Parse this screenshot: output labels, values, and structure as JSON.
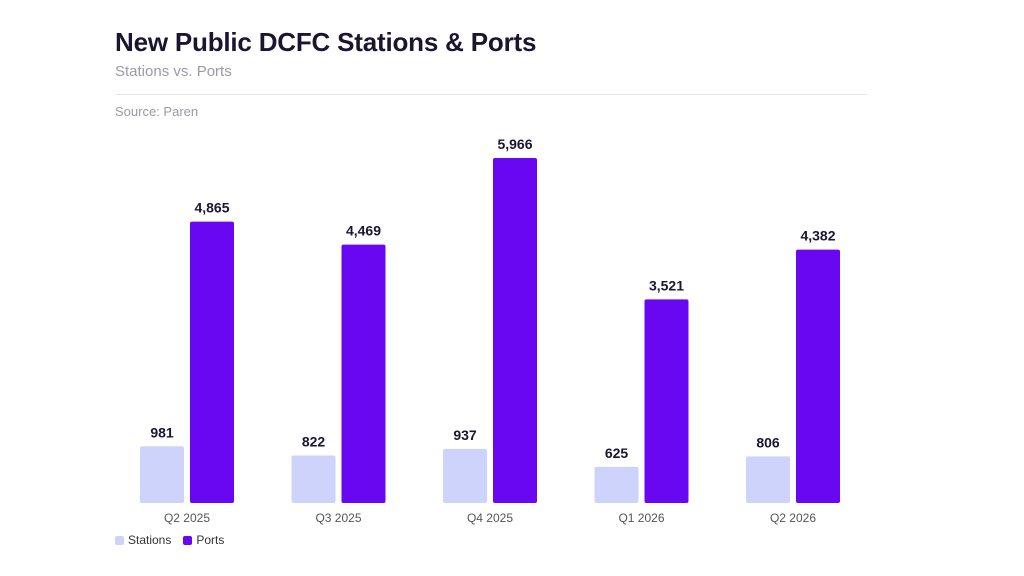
{
  "header": {
    "title": "New Public DCFC Stations & Ports",
    "subtitle": "Stations vs. Ports",
    "source": "Source: Paren"
  },
  "colors": {
    "stations": "#cdd3fb",
    "ports": "#6a07f2",
    "text": "#1b1530",
    "axis_text": "#555555"
  },
  "legend": {
    "items": [
      {
        "label": "Stations",
        "color": "#cdd3fb"
      },
      {
        "label": "Ports",
        "color": "#6a07f2"
      }
    ]
  },
  "chart_data": {
    "type": "bar",
    "categories": [
      "Q2 2025",
      "Q3 2025",
      "Q4 2025",
      "Q1 2026",
      "Q2 2026"
    ],
    "series": [
      {
        "name": "Stations",
        "values": [
          981,
          822,
          937,
          625,
          806
        ]
      },
      {
        "name": "Ports",
        "values": [
          4865,
          4469,
          5966,
          3521,
          4382
        ]
      }
    ],
    "data_labels": [
      [
        "981",
        "822",
        "937",
        "625",
        "806"
      ],
      [
        "4,865",
        "4,469",
        "5,966",
        "3,521",
        "4,382"
      ]
    ],
    "ylim": [
      0,
      5966
    ],
    "grid": false,
    "legend_position": "bottom-left"
  }
}
